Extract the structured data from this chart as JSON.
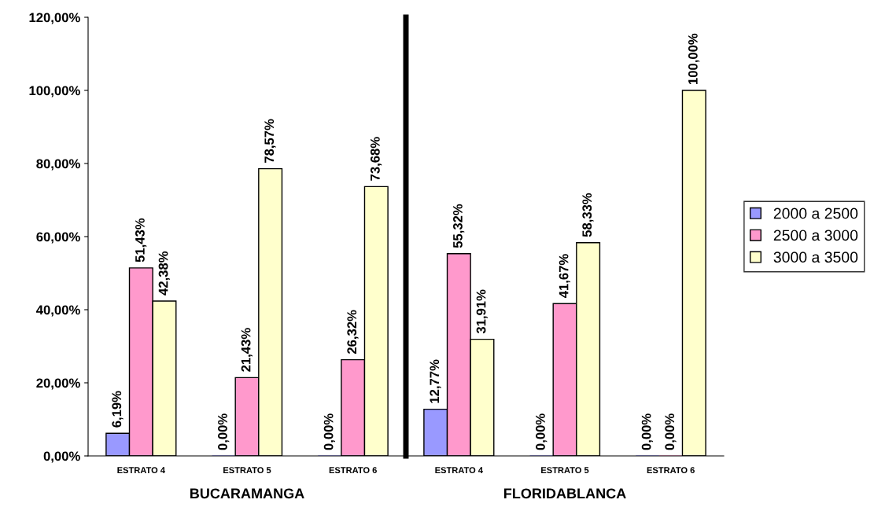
{
  "chart_data": [
    {
      "type": "bar",
      "xlabel": "BUCARAMANGA",
      "categories": [
        "ESTRATO 4",
        "ESTRATO 5",
        "ESTRATO 6"
      ],
      "series": [
        {
          "color": "#9999ff",
          "values": [
            6.19,
            0,
            0
          ],
          "value_labels": [
            "6,19%",
            "0,00%",
            "0,00%"
          ]
        },
        {
          "color": "#ff99cc",
          "values": [
            51.43,
            21.43,
            26.32
          ],
          "value_labels": [
            "51,43%",
            "21,43%",
            "26,32%"
          ]
        },
        {
          "color": "#ffffcc",
          "values": [
            42.38,
            78.57,
            73.68
          ],
          "value_labels": [
            "42,38%",
            "78,57%",
            "73,68%"
          ]
        }
      ],
      "ylim": [
        0,
        120
      ],
      "yticks": [
        {
          "value": 0,
          "label": "0,00%"
        },
        {
          "value": 20,
          "label": "20,00%"
        },
        {
          "value": 40,
          "label": "40,00%"
        },
        {
          "value": 60,
          "label": "60,00%"
        },
        {
          "value": 80,
          "label": "80,00%"
        },
        {
          "value": 100,
          "label": "100,00%"
        },
        {
          "value": 120,
          "label": "120,00%"
        }
      ],
      "grid": false,
      "legend": false
    },
    {
      "type": "bar",
      "xlabel": "FLORIDABLANCA",
      "categories": [
        "ESTRATO 4",
        "ESTRATO 5",
        "ESTRATO 6"
      ],
      "series": [
        {
          "name": "2000 a 2500",
          "color": "#9999ff",
          "values": [
            12.77,
            0,
            0
          ],
          "value_labels": [
            "12,77%",
            "0,00%",
            "0,00%"
          ]
        },
        {
          "name": "2500 a 3000",
          "color": "#ff99cc",
          "values": [
            55.32,
            41.67,
            0
          ],
          "value_labels": [
            "55,32%",
            "41,67%",
            "0,00%"
          ]
        },
        {
          "name": "3000 a 3500",
          "color": "#ffffcc",
          "values": [
            31.91,
            58.33,
            100
          ],
          "value_labels": [
            "31,91%",
            "58,33%",
            "100,00%"
          ]
        }
      ],
      "ylim": [
        0,
        120
      ],
      "tick_labels": "x",
      "grid": false,
      "legend": "right"
    }
  ]
}
